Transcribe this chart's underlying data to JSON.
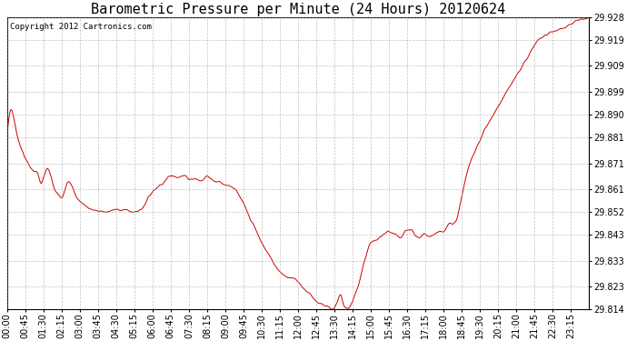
{
  "title": "Barometric Pressure per Minute (24 Hours) 20120624",
  "copyright": "Copyright 2012 Cartronics.com",
  "line_color": "#cc0000",
  "background_color": "#ffffff",
  "plot_bg_color": "#ffffff",
  "grid_color": "#999999",
  "ylim": [
    29.814,
    29.928
  ],
  "yticks": [
    29.814,
    29.823,
    29.833,
    29.843,
    29.852,
    29.861,
    29.871,
    29.881,
    29.89,
    29.899,
    29.909,
    29.919,
    29.928
  ],
  "xtick_labels": [
    "00:00",
    "00:45",
    "01:30",
    "02:15",
    "03:00",
    "03:45",
    "04:30",
    "05:15",
    "06:00",
    "06:45",
    "07:30",
    "08:15",
    "09:00",
    "09:45",
    "10:30",
    "11:15",
    "12:00",
    "12:45",
    "13:30",
    "14:15",
    "15:00",
    "15:45",
    "16:30",
    "17:15",
    "18:00",
    "18:45",
    "19:30",
    "20:15",
    "21:00",
    "21:45",
    "22:30",
    "23:15"
  ],
  "title_fontsize": 11,
  "tick_fontsize": 7,
  "copyright_fontsize": 6.5,
  "waypoints": [
    [
      0,
      29.882
    ],
    [
      10,
      29.892
    ],
    [
      25,
      29.882
    ],
    [
      45,
      29.873
    ],
    [
      60,
      29.869
    ],
    [
      75,
      29.867
    ],
    [
      85,
      29.863
    ],
    [
      90,
      29.865
    ],
    [
      100,
      29.869
    ],
    [
      108,
      29.866
    ],
    [
      115,
      29.862
    ],
    [
      120,
      29.86
    ],
    [
      135,
      29.858
    ],
    [
      145,
      29.862
    ],
    [
      150,
      29.864
    ],
    [
      160,
      29.862
    ],
    [
      175,
      29.857
    ],
    [
      190,
      29.855
    ],
    [
      210,
      29.853
    ],
    [
      240,
      29.852
    ],
    [
      280,
      29.853
    ],
    [
      315,
      29.852
    ],
    [
      330,
      29.853
    ],
    [
      360,
      29.86
    ],
    [
      390,
      29.864
    ],
    [
      405,
      29.866
    ],
    [
      420,
      29.866
    ],
    [
      440,
      29.866
    ],
    [
      450,
      29.865
    ],
    [
      465,
      29.865
    ],
    [
      480,
      29.864
    ],
    [
      495,
      29.866
    ],
    [
      505,
      29.865
    ],
    [
      520,
      29.864
    ],
    [
      535,
      29.863
    ],
    [
      555,
      29.862
    ],
    [
      575,
      29.858
    ],
    [
      585,
      29.855
    ],
    [
      600,
      29.85
    ],
    [
      615,
      29.845
    ],
    [
      630,
      29.84
    ],
    [
      645,
      29.836
    ],
    [
      660,
      29.832
    ],
    [
      675,
      29.829
    ],
    [
      690,
      29.827
    ],
    [
      705,
      29.826
    ],
    [
      720,
      29.825
    ],
    [
      735,
      29.822
    ],
    [
      750,
      29.82
    ],
    [
      765,
      29.817
    ],
    [
      780,
      29.816
    ],
    [
      795,
      29.815
    ],
    [
      805,
      29.814
    ],
    [
      815,
      29.816
    ],
    [
      825,
      29.82
    ],
    [
      835,
      29.815
    ],
    [
      845,
      29.814
    ],
    [
      855,
      29.817
    ],
    [
      870,
      29.824
    ],
    [
      885,
      29.833
    ],
    [
      900,
      29.84
    ],
    [
      915,
      29.841
    ],
    [
      930,
      29.843
    ],
    [
      945,
      29.844
    ],
    [
      960,
      29.843
    ],
    [
      975,
      29.842
    ],
    [
      985,
      29.844
    ],
    [
      1000,
      29.845
    ],
    [
      1010,
      29.843
    ],
    [
      1020,
      29.842
    ],
    [
      1035,
      29.843
    ],
    [
      1050,
      29.843
    ],
    [
      1065,
      29.844
    ],
    [
      1080,
      29.845
    ],
    [
      1095,
      29.847
    ],
    [
      1110,
      29.848
    ],
    [
      1125,
      29.858
    ],
    [
      1140,
      29.868
    ],
    [
      1155,
      29.875
    ],
    [
      1170,
      29.88
    ],
    [
      1185,
      29.885
    ],
    [
      1200,
      29.889
    ],
    [
      1215,
      29.893
    ],
    [
      1230,
      29.897
    ],
    [
      1245,
      29.901
    ],
    [
      1260,
      29.905
    ],
    [
      1275,
      29.909
    ],
    [
      1290,
      29.913
    ],
    [
      1305,
      29.917
    ],
    [
      1320,
      29.92
    ],
    [
      1335,
      29.921
    ],
    [
      1345,
      29.922
    ],
    [
      1360,
      29.923
    ],
    [
      1375,
      29.924
    ],
    [
      1390,
      29.925
    ],
    [
      1405,
      29.926
    ],
    [
      1420,
      29.927
    ],
    [
      1430,
      29.927
    ],
    [
      1439,
      29.928
    ]
  ]
}
